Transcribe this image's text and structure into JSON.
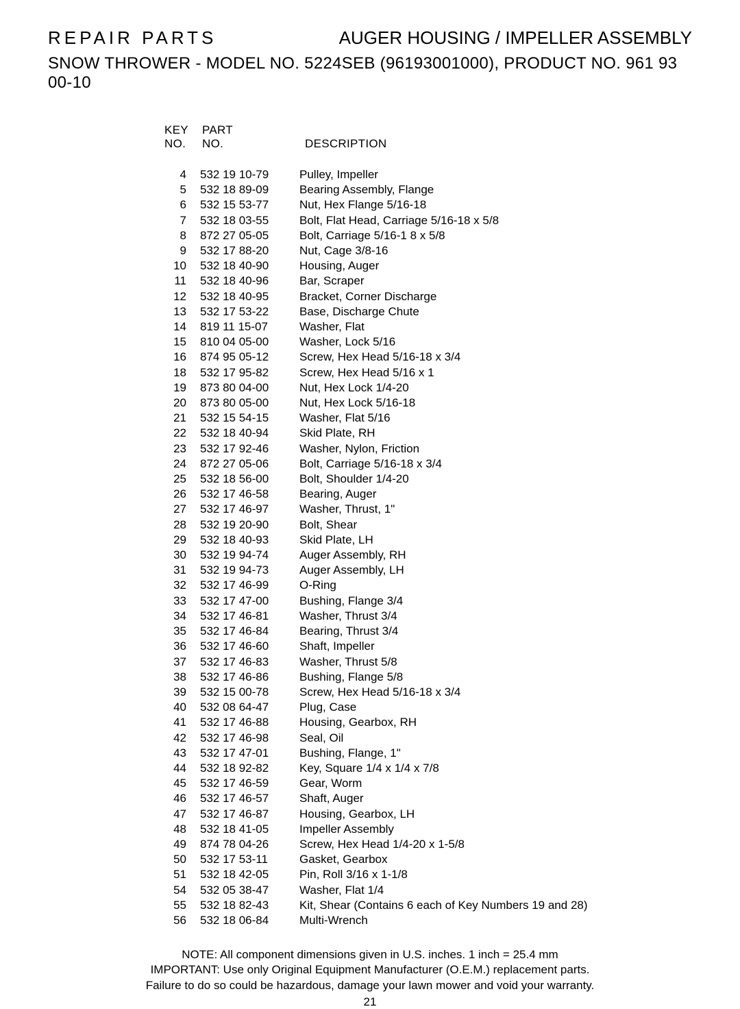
{
  "header": {
    "left": "REPAIR PARTS",
    "right": "AUGER HOUSING / IMPELLER ASSEMBLY",
    "sub": "SNOW THROWER - MODEL NO. 5224SEB (96193001000), PRODUCT NO. 961 93 00-10"
  },
  "columns": {
    "key1": "KEY",
    "key2": "NO.",
    "part1": "PART",
    "part2": "NO.",
    "desc": "DESCRIPTION"
  },
  "parts": [
    {
      "key": "4",
      "part": "532 19 10-79",
      "desc": "Pulley, Impeller"
    },
    {
      "key": "5",
      "part": "532 18 89-09",
      "desc": "Bearing Assembly, Flange"
    },
    {
      "key": "6",
      "part": "532 15 53-77",
      "desc": "Nut, Hex Flange  5/16-18"
    },
    {
      "key": "7",
      "part": "532 18 03-55",
      "desc": "Bolt, Flat Head, Carriage  5/16-18 x 5/8"
    },
    {
      "key": "8",
      "part": "872 27 05-05",
      "desc": "Bolt, Carriage  5/16-1 8 x 5/8"
    },
    {
      "key": "9",
      "part": "532 17 88-20",
      "desc": "Nut, Cage  3/8-16"
    },
    {
      "key": "10",
      "part": "532 18 40-90",
      "desc": "Housing, Auger"
    },
    {
      "key": "11",
      "part": "532 18 40-96",
      "desc": "Bar, Scraper"
    },
    {
      "key": "12",
      "part": "532 18 40-95",
      "desc": "Bracket, Corner Discharge"
    },
    {
      "key": "13",
      "part": "532 17 53-22",
      "desc": "Base, Discharge Chute"
    },
    {
      "key": "14",
      "part": "819 11 15-07",
      "desc": "Washer, Flat"
    },
    {
      "key": "15",
      "part": "810 04 05-00",
      "desc": "Washer, Lock  5/16"
    },
    {
      "key": "16",
      "part": "874 95 05-12",
      "desc": "Screw, Hex Head  5/16-18 x 3/4"
    },
    {
      "key": "18",
      "part": "532 17 95-82",
      "desc": "Screw, Hex Head  5/16 x 1"
    },
    {
      "key": "19",
      "part": "873 80 04-00",
      "desc": "Nut, Hex Lock  1/4-20"
    },
    {
      "key": "20",
      "part": "873 80 05-00",
      "desc": "Nut, Hex Lock  5/16-18"
    },
    {
      "key": "21",
      "part": "532 15 54-15",
      "desc": "Washer, Flat  5/16"
    },
    {
      "key": "22",
      "part": "532 18 40-94",
      "desc": "Skid Plate, RH"
    },
    {
      "key": "23",
      "part": "532 17 92-46",
      "desc": "Washer, Nylon, Friction"
    },
    {
      "key": "24",
      "part": "872 27 05-06",
      "desc": "Bolt, Carriage  5/16-18 x 3/4"
    },
    {
      "key": "25",
      "part": "532 18 56-00",
      "desc": "Bolt, Shoulder  1/4-20"
    },
    {
      "key": "26",
      "part": "532 17 46-58",
      "desc": "Bearing, Auger"
    },
    {
      "key": "27",
      "part": "532 17 46-97",
      "desc": "Washer, Thrust, 1\""
    },
    {
      "key": "28",
      "part": "532 19 20-90",
      "desc": "Bolt, Shear"
    },
    {
      "key": "29",
      "part": "532 18 40-93",
      "desc": "Skid Plate, LH"
    },
    {
      "key": "30",
      "part": "532 19 94-74",
      "desc": "Auger Assembly, RH"
    },
    {
      "key": "31",
      "part": "532 19 94-73",
      "desc": "Auger Assembly, LH"
    },
    {
      "key": "32",
      "part": "532 17 46-99",
      "desc": "O-Ring"
    },
    {
      "key": "33",
      "part": "532 17 47-00",
      "desc": "Bushing, Flange  3/4"
    },
    {
      "key": "34",
      "part": "532 17 46-81",
      "desc": "Washer, Thrust  3/4"
    },
    {
      "key": "35",
      "part": "532 17 46-84",
      "desc": "Bearing, Thrust  3/4"
    },
    {
      "key": "36",
      "part": "532 17 46-60",
      "desc": "Shaft, Impeller"
    },
    {
      "key": "37",
      "part": "532 17 46-83",
      "desc": "Washer, Thrust  5/8"
    },
    {
      "key": "38",
      "part": "532 17 46-86",
      "desc": "Bushing, Flange  5/8"
    },
    {
      "key": "39",
      "part": "532 15 00-78",
      "desc": "Screw, Hex Head  5/16-18 x 3/4"
    },
    {
      "key": "40",
      "part": "532 08 64-47",
      "desc": "Plug, Case"
    },
    {
      "key": "41",
      "part": "532 17 46-88",
      "desc": "Housing, Gearbox, RH"
    },
    {
      "key": "42",
      "part": "532 17 46-98",
      "desc": "Seal, Oil"
    },
    {
      "key": "43",
      "part": "532 17 47-01",
      "desc": "Bushing, Flange, 1\""
    },
    {
      "key": "44",
      "part": "532 18 92-82",
      "desc": "Key, Square  1/4 x 1/4 x 7/8"
    },
    {
      "key": "45",
      "part": "532 17 46-59",
      "desc": "Gear, Worm"
    },
    {
      "key": "46",
      "part": "532 17 46-57",
      "desc": "Shaft, Auger"
    },
    {
      "key": "47",
      "part": "532 17 46-87",
      "desc": "Housing, Gearbox, LH"
    },
    {
      "key": "48",
      "part": "532 18 41-05",
      "desc": "Impeller Assembly"
    },
    {
      "key": "49",
      "part": "874 78 04-26",
      "desc": "Screw, Hex Head  1/4-20 x 1-5/8"
    },
    {
      "key": "50",
      "part": "532 17 53-11",
      "desc": "Gasket, Gearbox"
    },
    {
      "key": "51",
      "part": "532 18 42-05",
      "desc": "Pin, Roll  3/16 x 1-1/8"
    },
    {
      "key": "54",
      "part": "532 05 38-47",
      "desc": "Washer, Flat  1/4"
    },
    {
      "key": "55",
      "part": "532 18 82-43",
      "desc": "Kit, Shear (Contains 6 each of Key Numbers 19 and 28)"
    },
    {
      "key": "56",
      "part": "532 18 06-84",
      "desc": "Multi-Wrench"
    }
  ],
  "footer": {
    "line1": "NOTE:  All component dimensions given in U.S. inches.    1 inch = 25.4 mm",
    "line2": "IMPORTANT: Use only Original Equipment Manufacturer (O.E.M.) replacement parts.",
    "line3": "Failure to do so could be hazardous, damage your lawn mower and void your warranty."
  },
  "pageNumber": "21"
}
